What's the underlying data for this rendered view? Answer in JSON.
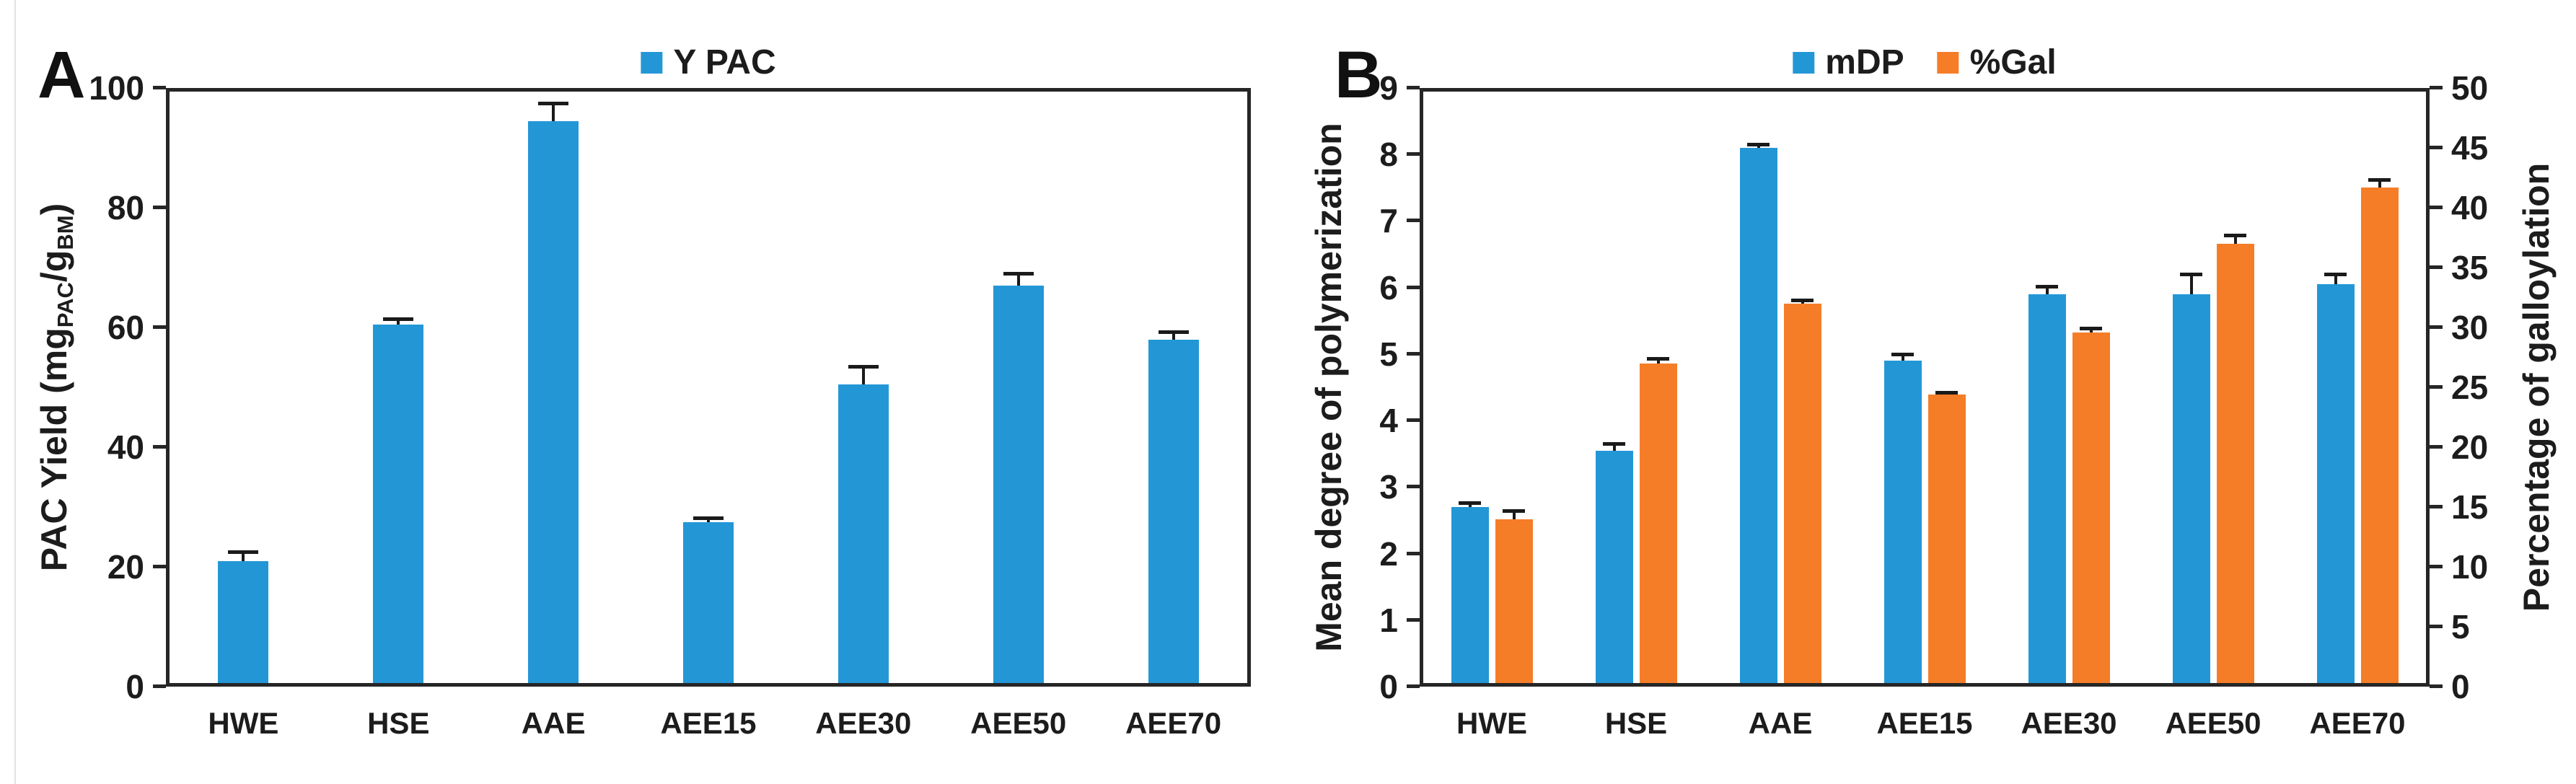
{
  "figure": {
    "background": "#ffffff"
  },
  "panels": [
    {
      "letter": "A"
    },
    {
      "letter": "B"
    }
  ],
  "colors": {
    "bar_blue": "#2397D6",
    "bar_orange": "#F57D28",
    "axis": "#262626",
    "error_bar": "#1a1a1a",
    "edge_line": "#e3e3e3"
  },
  "chart_data": [
    {
      "panel": "A",
      "type": "bar",
      "legend": [
        {
          "label": "Y PAC",
          "color": "#2397D6"
        }
      ],
      "legend_position": "top-center",
      "categories": [
        "HWE",
        "HSE",
        "AAE",
        "AEE15",
        "AEE30",
        "AEE50",
        "AEE70"
      ],
      "series": [
        {
          "name": "Y PAC",
          "axis": "left",
          "color": "#2397D6",
          "values": [
            21,
            60.5,
            94.5,
            27.5,
            50.5,
            67,
            58
          ],
          "errors": [
            1.5,
            1,
            3,
            0.7,
            3,
            2,
            1.3
          ]
        }
      ],
      "ylabel": "PAC Yield (mg_PAC/g_BM)",
      "ylabel_parts": [
        {
          "text": "PAC Yield (mg"
        },
        {
          "text": "PAC",
          "sub": true
        },
        {
          "text": "/g"
        },
        {
          "text": "BM",
          "sub": true
        },
        {
          "text": ")"
        }
      ],
      "xlabel": "",
      "yaxis": {
        "min": 0,
        "max": 100,
        "step": 20,
        "ticks": [
          0,
          20,
          40,
          60,
          80,
          100
        ]
      },
      "grid": false,
      "error_bars": true
    },
    {
      "panel": "B",
      "type": "bar",
      "legend": [
        {
          "label": "mDP",
          "color": "#2397D6"
        },
        {
          "label": "%Gal",
          "color": "#F57D28"
        }
      ],
      "legend_position": "top-center",
      "categories": [
        "HWE",
        "HSE",
        "AAE",
        "AEE15",
        "AEE30",
        "AEE50",
        "AEE70"
      ],
      "series": [
        {
          "name": "mDP",
          "axis": "left",
          "color": "#2397D6",
          "values": [
            2.7,
            3.55,
            8.1,
            4.9,
            5.9,
            5.9,
            6.05
          ],
          "errors": [
            0.06,
            0.1,
            0.05,
            0.1,
            0.12,
            0.3,
            0.15
          ]
        },
        {
          "name": "%Gal",
          "axis": "right",
          "color": "#F57D28",
          "values": [
            14,
            27,
            32,
            24.4,
            29.6,
            37,
            41.7
          ],
          "errors": [
            0.7,
            0.4,
            0.3,
            0.2,
            0.35,
            0.7,
            0.65
          ]
        }
      ],
      "ylabel_left": "Mean degree of polymerization",
      "ylabel_right": "Percentage of galloylation",
      "xlabel": "",
      "yaxis_left": {
        "min": 0,
        "max": 9,
        "step": 1,
        "ticks": [
          0,
          1,
          2,
          3,
          4,
          5,
          6,
          7,
          8,
          9
        ]
      },
      "yaxis_right": {
        "min": 0,
        "max": 50,
        "step": 5,
        "ticks": [
          0,
          5,
          10,
          15,
          20,
          25,
          30,
          35,
          40,
          45,
          50
        ]
      },
      "grid": false,
      "error_bars": true
    }
  ]
}
